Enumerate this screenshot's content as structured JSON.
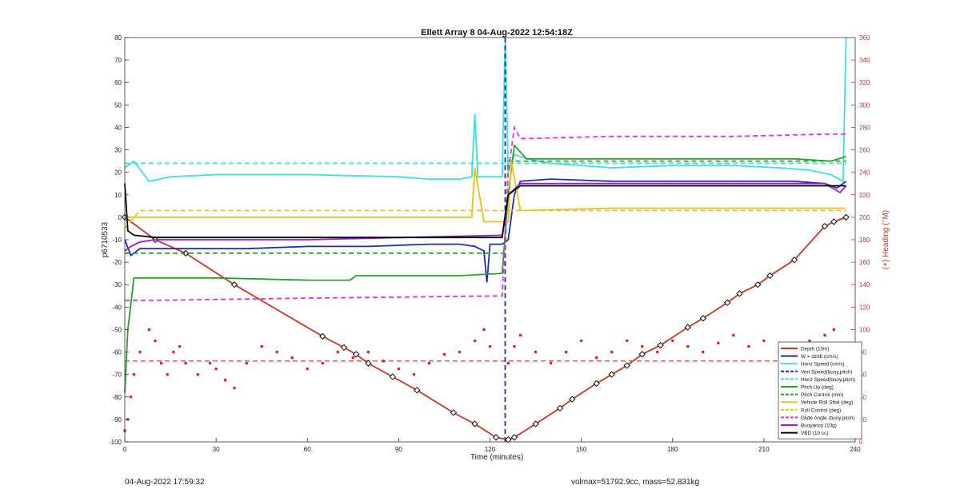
{
  "footer": {
    "timestamp": "04-Aug-2022 17:59:32",
    "summary": "volmax=51792.9cc, mass=52.831kg"
  },
  "chart_data": {
    "type": "line",
    "title": "Ellett Array 8 04-Aug-2022 12:54:18Z",
    "xlabel": "Time (minutes)",
    "ylabel": "p6710533",
    "y2label": "(+) Heading (°M)",
    "xlim": [
      0,
      240
    ],
    "ylim": [
      -100,
      80
    ],
    "y2lim": [
      0,
      360
    ],
    "xticks": [
      0,
      30,
      60,
      90,
      120,
      150,
      180,
      210,
      240
    ],
    "yticks": [
      -100,
      -90,
      -80,
      -70,
      -60,
      -50,
      -40,
      -30,
      -20,
      -10,
      0,
      10,
      20,
      30,
      40,
      50,
      60,
      70,
      80
    ],
    "y2ticks": [
      0,
      20,
      40,
      60,
      80,
      100,
      120,
      140,
      160,
      180,
      200,
      220,
      240,
      260,
      280,
      300,
      320,
      340,
      360
    ],
    "grid": false,
    "legend_position": "bottom-right",
    "series": [
      {
        "name": "Depth (10m)",
        "color": "#c0392b",
        "style": "solid-markers",
        "x": [
          0,
          10,
          20,
          36,
          65,
          72,
          76,
          80,
          88,
          96,
          108,
          115,
          122,
          126,
          128,
          135,
          143,
          147,
          155,
          160,
          165,
          170,
          176,
          185,
          190,
          198,
          202,
          208,
          212,
          220,
          230,
          233,
          237
        ],
        "y": [
          0,
          -10,
          -16,
          -30,
          -53,
          -58,
          -61,
          -65,
          -71,
          -77,
          -87,
          -92,
          -98,
          -99,
          -98,
          -92,
          -85,
          -81,
          -74,
          -70,
          -66,
          -61,
          -57,
          -49,
          -45,
          -38,
          -34,
          -30,
          -26,
          -19,
          -4,
          -2,
          0
        ]
      },
      {
        "name": "W = dz/dt (cm/s)",
        "color": "#1f2fa8",
        "style": "solid",
        "x": [
          0,
          2,
          5,
          10,
          20,
          40,
          60,
          80,
          100,
          110,
          115,
          118,
          119,
          120,
          124,
          126,
          128,
          130,
          140,
          160,
          180,
          200,
          220,
          230,
          234,
          237
        ],
        "y": [
          -10,
          -17,
          -14,
          -14,
          -14,
          -14,
          -13,
          -13,
          -12,
          -12,
          -13,
          -15,
          -29,
          -12,
          -12,
          -10,
          10,
          16,
          17,
          16,
          16,
          16,
          16,
          15,
          13,
          16
        ]
      },
      {
        "name": "Horiz Speed (cm/s)",
        "color": "#3ddfe0",
        "style": "solid",
        "x": [
          0,
          3,
          8,
          15,
          30,
          60,
          90,
          100,
          110,
          114,
          115,
          116,
          120,
          124,
          125,
          126,
          128,
          132,
          140,
          160,
          180,
          200,
          215,
          225,
          232,
          236,
          237
        ],
        "y": [
          22,
          25,
          16,
          18,
          19,
          19,
          18,
          17,
          17,
          18,
          46,
          18,
          18,
          18,
          80,
          20,
          28,
          26,
          24,
          22,
          23,
          23,
          22,
          21,
          19,
          16,
          80
        ]
      },
      {
        "name": "Vert Speed(buoy,pitch)",
        "color": "#1f2fa8",
        "style": "dashed",
        "x": [
          125,
          125
        ],
        "y": [
          80,
          -100
        ]
      },
      {
        "name": "Horiz Speed(buoy,pitch)",
        "color": "#3ddfe0",
        "style": "dashed",
        "x": [
          0,
          237
        ],
        "y": [
          24,
          24
        ]
      },
      {
        "name": "Pitch Up (deg)",
        "color": "#2ca02c",
        "style": "solid",
        "x": [
          0,
          1,
          3,
          10,
          30,
          60,
          74,
          76,
          90,
          110,
          124,
          126,
          128,
          132,
          160,
          190,
          220,
          232,
          237
        ],
        "y": [
          -78,
          -50,
          -27,
          -27,
          -27,
          -28,
          -28,
          -26,
          -26,
          -26,
          -25,
          10,
          32,
          26,
          26,
          26,
          26,
          25,
          27
        ]
      },
      {
        "name": "Pitch Control (mm)",
        "color": "#2ca02c",
        "style": "dashed",
        "x": [
          0,
          125,
          126,
          237
        ],
        "y": [
          -16,
          -16,
          25,
          25
        ]
      },
      {
        "name": "Vehicle Roll Stbd (deg)",
        "color": "#e8c21a",
        "style": "solid",
        "x": [
          0,
          5,
          10,
          20,
          40,
          60,
          80,
          100,
          114,
          115,
          118,
          122,
          126,
          127,
          130,
          160,
          190,
          220,
          232,
          237
        ],
        "y": [
          0,
          0,
          0,
          0,
          0,
          0,
          0,
          0,
          0,
          22,
          -2,
          -2,
          -2,
          25,
          3,
          4,
          4,
          4,
          4,
          4
        ]
      },
      {
        "name": "Roll Control (deg)",
        "color": "#e8c21a",
        "style": "dashed",
        "x": [
          0,
          5,
          10,
          20,
          60,
          100,
          120,
          125,
          126,
          130,
          160,
          200,
          237
        ],
        "y": [
          -5,
          3,
          3,
          3,
          3,
          3,
          3,
          3,
          3,
          3,
          3,
          3,
          3
        ]
      },
      {
        "name": "Glide Angle (buoy,pitch)",
        "color": "#e033e0",
        "style": "dashed",
        "x": [
          0,
          5,
          10,
          60,
          124,
          126,
          128,
          130,
          160,
          200,
          230,
          237
        ],
        "y": [
          -37,
          -37,
          -37,
          -36,
          -35,
          20,
          40,
          35,
          36,
          36,
          37,
          37
        ]
      },
      {
        "name": "Buoyancy (10g)",
        "color": "#9b1fc0",
        "style": "solid",
        "x": [
          0,
          2,
          5,
          10,
          60,
          124,
          126,
          130,
          160,
          200,
          230,
          235,
          237
        ],
        "y": [
          -15,
          -13,
          -11,
          -10,
          -10,
          -8,
          10,
          15,
          15,
          15,
          15,
          11,
          14
        ]
      },
      {
        "name": "VBD (10 cc)",
        "color": "#000000",
        "style": "solid",
        "x": [
          0,
          1,
          3,
          10,
          60,
          124,
          126,
          130,
          160,
          200,
          230,
          237
        ],
        "y": [
          15,
          -6,
          -8,
          -9,
          -9,
          -9,
          10,
          14,
          14,
          14,
          14,
          14
        ]
      }
    ],
    "heading_series": {
      "name": "Heading",
      "color": "#d62728",
      "axis": "right",
      "mean": 72,
      "x": [
        0,
        1,
        2,
        3,
        5,
        8,
        10,
        12,
        14,
        16,
        18,
        20,
        24,
        28,
        30,
        33,
        36,
        40,
        45,
        50,
        55,
        60,
        65,
        70,
        75,
        80,
        85,
        90,
        95,
        100,
        105,
        110,
        115,
        118,
        120,
        126,
        128,
        130,
        135,
        140,
        145,
        150,
        155,
        160,
        165,
        170,
        175,
        180,
        185,
        190,
        195,
        200,
        205,
        210,
        215,
        220,
        225,
        230,
        233,
        236
      ],
      "y": [
        10,
        20,
        40,
        60,
        80,
        100,
        90,
        70,
        60,
        80,
        85,
        70,
        60,
        70,
        65,
        55,
        48,
        70,
        85,
        80,
        75,
        65,
        70,
        80,
        75,
        80,
        72,
        65,
        60,
        70,
        78,
        80,
        90,
        100,
        85,
        70,
        85,
        95,
        80,
        70,
        80,
        90,
        75,
        80,
        90,
        85,
        80,
        90,
        85,
        80,
        88,
        95,
        85,
        90,
        80,
        85,
        90,
        95,
        100,
        85
      ]
    }
  }
}
